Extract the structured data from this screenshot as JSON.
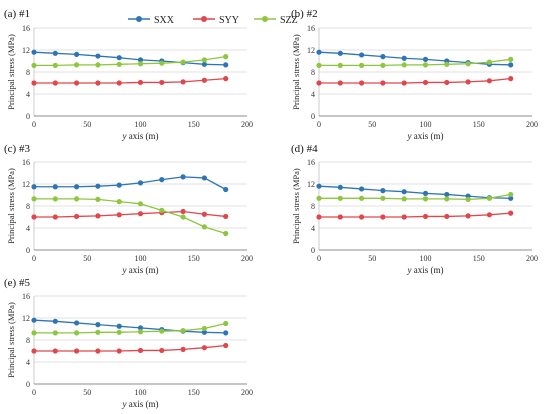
{
  "legend": {
    "entries": [
      {
        "name": "SXX",
        "color": "#2E75B6"
      },
      {
        "name": "SYY",
        "color": "#E0474C"
      },
      {
        "name": "SZZ",
        "color": "#8DC63F"
      }
    ]
  },
  "chart_data": [
    {
      "type": "line",
      "panel_label": "(a) #1",
      "xlabel_italic": "y",
      "xlabel_rest": " axis (m)",
      "ylabel": "Principal stress (MPa)",
      "xlim": [
        0,
        200
      ],
      "ylim": [
        0,
        16
      ],
      "xticks": [
        0,
        50,
        100,
        150,
        200
      ],
      "yticks": [
        0,
        4,
        8,
        12,
        16
      ],
      "grid": true,
      "x": [
        0,
        20,
        40,
        60,
        80,
        100,
        120,
        140,
        160,
        180
      ],
      "series": [
        {
          "name": "SXX",
          "color": "#2E75B6",
          "values": [
            11.6,
            11.4,
            11.2,
            10.9,
            10.6,
            10.2,
            10.0,
            9.7,
            9.4,
            9.3
          ]
        },
        {
          "name": "SYY",
          "color": "#E0474C",
          "values": [
            6.0,
            6.0,
            6.0,
            6.0,
            6.0,
            6.1,
            6.1,
            6.2,
            6.5,
            6.8
          ]
        },
        {
          "name": "SZZ",
          "color": "#8DC63F",
          "values": [
            9.2,
            9.2,
            9.3,
            9.3,
            9.4,
            9.5,
            9.6,
            9.8,
            10.2,
            10.8
          ]
        }
      ]
    },
    {
      "type": "line",
      "panel_label": "(b) #2",
      "xlabel_italic": "y",
      "xlabel_rest": " axis (m)",
      "ylabel": "Principal stress (MPa)",
      "xlim": [
        0,
        200
      ],
      "ylim": [
        0,
        16
      ],
      "xticks": [
        0,
        50,
        100,
        150,
        200
      ],
      "yticks": [
        0,
        4,
        8,
        12,
        16
      ],
      "grid": true,
      "x": [
        0,
        20,
        40,
        60,
        80,
        100,
        120,
        140,
        160,
        180
      ],
      "series": [
        {
          "name": "SXX",
          "color": "#2E75B6",
          "values": [
            11.6,
            11.4,
            11.1,
            10.8,
            10.5,
            10.3,
            10.0,
            9.7,
            9.4,
            9.3
          ]
        },
        {
          "name": "SYY",
          "color": "#E0474C",
          "values": [
            6.0,
            6.0,
            6.0,
            6.0,
            6.0,
            6.1,
            6.1,
            6.2,
            6.4,
            6.8
          ]
        },
        {
          "name": "SZZ",
          "color": "#8DC63F",
          "values": [
            9.2,
            9.2,
            9.2,
            9.2,
            9.3,
            9.3,
            9.4,
            9.5,
            9.8,
            10.3
          ]
        }
      ]
    },
    {
      "type": "line",
      "panel_label": "(c) #3",
      "xlabel_italic": "y",
      "xlabel_rest": " axis (m)",
      "ylabel": "Principal stress (MPa)",
      "xlim": [
        0,
        200
      ],
      "ylim": [
        0,
        16
      ],
      "xticks": [
        0,
        50,
        100,
        150,
        200
      ],
      "yticks": [
        0,
        4,
        8,
        12,
        16
      ],
      "grid": true,
      "x": [
        0,
        20,
        40,
        60,
        80,
        100,
        120,
        140,
        160,
        180
      ],
      "series": [
        {
          "name": "SXX",
          "color": "#2E75B6",
          "values": [
            11.5,
            11.5,
            11.5,
            11.6,
            11.8,
            12.2,
            12.8,
            13.3,
            13.1,
            11.0
          ]
        },
        {
          "name": "SYY",
          "color": "#E0474C",
          "values": [
            6.0,
            6.0,
            6.1,
            6.2,
            6.4,
            6.6,
            6.8,
            7.0,
            6.5,
            6.1
          ]
        },
        {
          "name": "SZZ",
          "color": "#8DC63F",
          "values": [
            9.3,
            9.3,
            9.3,
            9.2,
            8.8,
            8.4,
            7.2,
            6.0,
            4.2,
            3.0
          ]
        }
      ]
    },
    {
      "type": "line",
      "panel_label": "(d) #4",
      "xlabel_italic": "y",
      "xlabel_rest": " axis (m)",
      "ylabel": "Principal stress (MPa)",
      "xlim": [
        0,
        200
      ],
      "ylim": [
        0,
        16
      ],
      "xticks": [
        0,
        50,
        100,
        150,
        200
      ],
      "yticks": [
        0,
        4,
        8,
        12,
        16
      ],
      "grid": true,
      "x": [
        0,
        20,
        40,
        60,
        80,
        100,
        120,
        140,
        160,
        180
      ],
      "series": [
        {
          "name": "SXX",
          "color": "#2E75B6",
          "values": [
            11.6,
            11.4,
            11.1,
            10.8,
            10.6,
            10.3,
            10.1,
            9.8,
            9.5,
            9.4
          ]
        },
        {
          "name": "SYY",
          "color": "#E0474C",
          "values": [
            6.0,
            6.0,
            6.0,
            6.0,
            6.0,
            6.1,
            6.1,
            6.2,
            6.4,
            6.7
          ]
        },
        {
          "name": "SZZ",
          "color": "#8DC63F",
          "values": [
            9.4,
            9.4,
            9.4,
            9.4,
            9.3,
            9.3,
            9.3,
            9.2,
            9.4,
            10.1
          ]
        }
      ]
    },
    {
      "type": "line",
      "panel_label": "(e) #5",
      "xlabel_italic": "y",
      "xlabel_rest": " axis (m)",
      "ylabel": "Principal stress (MPa)",
      "xlim": [
        0,
        200
      ],
      "ylim": [
        0,
        16
      ],
      "xticks": [
        0,
        50,
        100,
        150,
        200
      ],
      "yticks": [
        0,
        4,
        8,
        12,
        16
      ],
      "grid": true,
      "x": [
        0,
        20,
        40,
        60,
        80,
        100,
        120,
        140,
        160,
        180
      ],
      "series": [
        {
          "name": "SXX",
          "color": "#2E75B6",
          "values": [
            11.6,
            11.4,
            11.1,
            10.8,
            10.5,
            10.2,
            9.9,
            9.6,
            9.4,
            9.3
          ]
        },
        {
          "name": "SYY",
          "color": "#E0474C",
          "values": [
            6.0,
            6.0,
            6.0,
            6.0,
            6.0,
            6.1,
            6.1,
            6.3,
            6.6,
            7.0
          ]
        },
        {
          "name": "SZZ",
          "color": "#8DC63F",
          "values": [
            9.3,
            9.3,
            9.3,
            9.4,
            9.4,
            9.5,
            9.6,
            9.7,
            10.1,
            11.0
          ]
        }
      ]
    }
  ]
}
